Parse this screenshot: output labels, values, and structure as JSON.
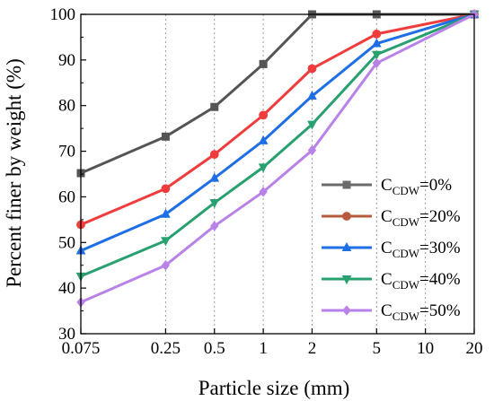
{
  "chart_data": {
    "type": "line",
    "xlabel": "Particle size (mm)",
    "ylabel": "Percent finer by weight (%)",
    "x_scale": "log",
    "xlim": [
      0.075,
      20
    ],
    "ylim": [
      30,
      100
    ],
    "x_ticks": [
      0.075,
      0.25,
      0.5,
      1,
      2,
      5,
      10,
      20
    ],
    "x_tick_labels": [
      "0.075",
      "0.25",
      "0.5",
      "1",
      "2",
      "5",
      "10",
      "20"
    ],
    "y_ticks": [
      30,
      40,
      50,
      60,
      70,
      80,
      90,
      100
    ],
    "y_tick_labels": [
      "30",
      "40",
      "50",
      "60",
      "70",
      "80",
      "90",
      "100"
    ],
    "grid": "vertical dotted at x ticks",
    "legend_position": "right",
    "x": [
      0.075,
      0.25,
      0.5,
      1,
      2,
      5,
      20
    ],
    "series": [
      {
        "name": "C",
        "sub": "CDW",
        "suffix": "=0%",
        "color": "#555555",
        "marker": "square",
        "values": [
          65.2,
          73.2,
          79.7,
          89.1,
          100,
          100,
          100
        ]
      },
      {
        "name": "C",
        "sub": "CDW",
        "suffix": "=20%",
        "color": "#f03c3c",
        "marker": "circle",
        "values": [
          53.9,
          61.8,
          69.3,
          77.9,
          88.1,
          95.7,
          100
        ]
      },
      {
        "name": "C",
        "sub": "CDW",
        "suffix": "=30%",
        "color": "#1e6ee6",
        "marker": "triangle-up",
        "values": [
          48.2,
          56.2,
          64.1,
          72.3,
          82.1,
          93.6,
          100
        ]
      },
      {
        "name": "C",
        "sub": "CDW",
        "suffix": "=40%",
        "color": "#28a070",
        "marker": "triangle-down",
        "values": [
          42.6,
          50.4,
          58.7,
          66.5,
          75.9,
          91.2,
          100
        ]
      },
      {
        "name": "C",
        "sub": "CDW",
        "suffix": "=50%",
        "color": "#b882e8",
        "marker": "diamond",
        "values": [
          36.9,
          45.0,
          53.6,
          61.1,
          70.2,
          89.3,
          100
        ]
      }
    ],
    "legend_colors": [
      "#6b6b6b",
      "#b85a3c",
      "#1e6ee6",
      "#28a070",
      "#b882e8"
    ]
  }
}
